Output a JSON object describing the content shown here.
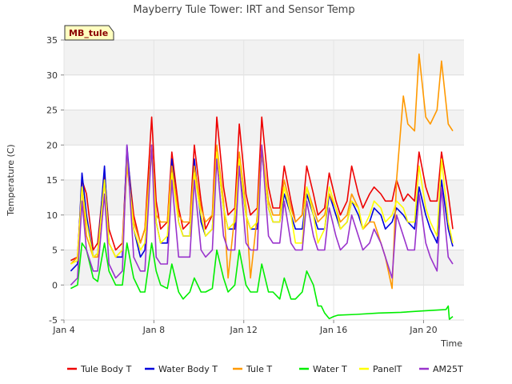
{
  "chart_data": {
    "type": "line",
    "title": "Mayberry Tule Tower: IRT and Sensor Temp",
    "xlabel": "Time",
    "ylabel": "Temperature (C)",
    "site_badge": "MB_tule",
    "xlim": [
      4,
      21.8
    ],
    "ylim": [
      -5,
      35
    ],
    "yticks": [
      -5,
      0,
      5,
      10,
      15,
      20,
      25,
      30,
      35
    ],
    "xticks": [
      {
        "value": 4,
        "label": "Jan 4"
      },
      {
        "value": 8,
        "label": "Jan 8"
      },
      {
        "value": 12,
        "label": "Jan 12"
      },
      {
        "value": 16,
        "label": "Jan 16"
      },
      {
        "value": 20,
        "label": "Jan 20"
      }
    ],
    "grid": true,
    "legend_position": "bottom",
    "series": [
      {
        "name": "Tule Body T",
        "color": "#ee0000",
        "x": [
          4.3,
          4.6,
          4.8,
          5.0,
          5.3,
          5.5,
          5.8,
          6.0,
          6.3,
          6.6,
          6.8,
          7.1,
          7.4,
          7.6,
          7.9,
          8.1,
          8.3,
          8.6,
          8.8,
          9.1,
          9.3,
          9.6,
          9.8,
          10.1,
          10.3,
          10.6,
          10.8,
          11.1,
          11.3,
          11.6,
          11.8,
          12.1,
          12.3,
          12.6,
          12.8,
          13.1,
          13.3,
          13.6,
          13.8,
          14.1,
          14.3,
          14.6,
          14.8,
          15.1,
          15.3,
          15.6,
          15.8,
          16.1,
          16.3,
          16.6,
          16.8,
          17.1,
          17.3,
          17.6,
          17.8,
          18.1,
          18.3,
          18.6,
          18.8,
          19.1,
          19.3,
          19.6,
          19.8,
          20.1,
          20.3,
          20.6,
          20.8,
          21.1,
          21.3
        ],
        "y": [
          3.5,
          4,
          15,
          13,
          5,
          6,
          16,
          8,
          5,
          6,
          19,
          10,
          6,
          8,
          24,
          12,
          8,
          9,
          19,
          11,
          8,
          9,
          20,
          12,
          8,
          10,
          24,
          14,
          10,
          11,
          23,
          13,
          10,
          11,
          24,
          14,
          11,
          11,
          17,
          12,
          9,
          10,
          17,
          13,
          10,
          11,
          16,
          12,
          10,
          12,
          17,
          13,
          11,
          13,
          14,
          13,
          12,
          12,
          15,
          12,
          13,
          12,
          19,
          14,
          12,
          12,
          19,
          13,
          8
        ]
      },
      {
        "name": "Water Body T",
        "color": "#0000dd",
        "x": [
          4.3,
          4.6,
          4.8,
          5.0,
          5.3,
          5.5,
          5.8,
          6.0,
          6.3,
          6.6,
          6.8,
          7.1,
          7.4,
          7.6,
          7.9,
          8.1,
          8.3,
          8.6,
          8.8,
          9.1,
          9.3,
          9.6,
          9.8,
          10.1,
          10.3,
          10.6,
          10.8,
          11.1,
          11.3,
          11.6,
          11.8,
          12.1,
          12.3,
          12.6,
          12.8,
          13.1,
          13.3,
          13.6,
          13.8,
          14.1,
          14.3,
          14.6,
          14.8,
          15.1,
          15.3,
          15.6,
          15.8,
          16.1,
          16.3,
          16.6,
          16.8,
          17.1,
          17.3,
          17.6,
          17.8,
          18.1,
          18.3,
          18.6,
          18.8,
          19.1,
          19.3,
          19.6,
          19.8,
          20.1,
          20.3,
          20.6,
          20.8,
          21.1,
          21.3
        ],
        "y": [
          2,
          3,
          16,
          10,
          4,
          4.5,
          17,
          6,
          4,
          4,
          20,
          8,
          4,
          5,
          20,
          9,
          6,
          6,
          18,
          9,
          7,
          7,
          18,
          9,
          7,
          8,
          19,
          11,
          8,
          8,
          17,
          10,
          8,
          8,
          19,
          11,
          9,
          9,
          13,
          10,
          8,
          8,
          13,
          10,
          8,
          8,
          13,
          10,
          8,
          9,
          12,
          10,
          8,
          9,
          11,
          10,
          8,
          9,
          11,
          10,
          9,
          8,
          14,
          10,
          8,
          6,
          15,
          8,
          5.5
        ]
      },
      {
        "name": "Tule T",
        "color": "#ff9900",
        "x": [
          4.3,
          4.6,
          4.8,
          5.0,
          5.3,
          5.5,
          5.8,
          6.0,
          6.3,
          6.6,
          6.8,
          7.1,
          7.4,
          7.6,
          7.9,
          8.1,
          8.3,
          8.6,
          8.8,
          9.1,
          9.3,
          9.6,
          9.8,
          10.1,
          10.3,
          10.6,
          10.8,
          11.1,
          11.3,
          11.6,
          11.8,
          12.1,
          12.3,
          12.6,
          12.8,
          13.1,
          13.3,
          13.6,
          13.8,
          14.1,
          14.3,
          14.6,
          14.8,
          15.1,
          15.3,
          15.6,
          15.8,
          16.1,
          16.3,
          16.6,
          16.8,
          17.1,
          17.3,
          17.6,
          17.8,
          18.1,
          18.3,
          18.6,
          18.8,
          19.1,
          19.3,
          19.6,
          19.8,
          20.1,
          20.3,
          20.6,
          20.8,
          21.1,
          21.3
        ],
        "y": [
          3,
          4,
          14,
          7,
          4,
          4,
          15,
          6,
          4,
          5,
          17,
          9,
          6,
          8,
          20,
          10,
          9,
          9,
          17,
          10,
          9,
          9,
          17,
          11,
          9,
          10,
          20,
          12,
          1,
          10,
          19,
          11,
          1,
          10,
          20,
          12,
          10,
          10,
          15,
          11,
          9,
          10,
          14,
          11,
          9,
          10,
          13,
          11,
          9,
          10,
          13,
          11,
          8,
          9,
          9,
          6,
          4,
          -0.5,
          15,
          27,
          23,
          22,
          33,
          24,
          23,
          25,
          32,
          23,
          22
        ]
      },
      {
        "name": "Water T",
        "color": "#00ee00",
        "x": [
          4.3,
          4.6,
          4.8,
          5.0,
          5.3,
          5.5,
          5.8,
          6.0,
          6.3,
          6.6,
          6.8,
          7.1,
          7.4,
          7.6,
          7.9,
          8.1,
          8.3,
          8.6,
          8.8,
          9.1,
          9.3,
          9.6,
          9.8,
          10.1,
          10.3,
          10.6,
          10.8,
          11.1,
          11.3,
          11.6,
          11.8,
          12.1,
          12.3,
          12.6,
          12.8,
          13.1,
          13.3,
          13.6,
          13.8,
          14.1,
          14.3,
          14.6,
          14.8,
          15.1,
          15.3,
          15.45,
          15.6,
          15.8,
          16.0,
          16.2,
          17.0,
          18.0,
          19.0,
          20.0,
          21.0,
          21.1,
          21.15,
          21.3
        ],
        "y": [
          -0.5,
          0,
          6,
          5,
          1,
          0.5,
          6,
          2,
          0,
          0,
          6,
          1,
          -1,
          -1,
          6,
          2,
          0,
          -0.5,
          3,
          -1,
          -2,
          -1,
          1,
          -1,
          -1,
          -0.5,
          5,
          1,
          -1,
          0,
          5,
          0,
          -1,
          -1,
          3,
          -1,
          -1,
          -2,
          1,
          -2,
          -2,
          -1,
          2,
          0,
          -3,
          -3,
          -4,
          -4.8,
          -4.5,
          -4.3,
          -4.2,
          -4.0,
          -3.9,
          -3.7,
          -3.5,
          -3.0,
          -4.9,
          -4.5
        ]
      },
      {
        "name": "PanelT",
        "color": "#ffff00",
        "x": [
          4.3,
          4.6,
          4.8,
          5.0,
          5.3,
          5.5,
          5.8,
          6.0,
          6.3,
          6.6,
          6.8,
          7.1,
          7.4,
          7.6,
          7.9,
          8.1,
          8.3,
          8.6,
          8.8,
          9.1,
          9.3,
          9.6,
          9.8,
          10.1,
          10.3,
          10.6,
          10.8,
          11.1,
          11.3,
          11.6,
          11.8,
          12.1,
          12.3,
          12.6,
          12.8,
          13.1,
          13.3,
          13.6,
          13.8,
          14.1,
          14.3,
          14.6,
          14.8,
          15.1,
          15.3,
          15.6,
          15.8,
          16.1,
          16.3,
          16.6,
          16.8,
          17.1,
          17.3,
          17.6,
          17.8,
          18.1,
          18.3,
          18.6,
          18.8,
          19.1,
          19.3,
          19.6,
          19.8,
          20.1,
          20.3,
          20.6,
          20.8,
          21.1,
          21.3
        ],
        "y": [
          3,
          3.5,
          14,
          9,
          4,
          4.5,
          15,
          6,
          4,
          5,
          18,
          8,
          5,
          6,
          19,
          9,
          6,
          7,
          16,
          9,
          7,
          7,
          16,
          10,
          7,
          8,
          19,
          11,
          8,
          9,
          18,
          10,
          8,
          9,
          19,
          11,
          9,
          9,
          14,
          10,
          6,
          6,
          14,
          10,
          6,
          8,
          14,
          11,
          8,
          9,
          12,
          11,
          8,
          10,
          12,
          11,
          9,
          10,
          12,
          11,
          9,
          9,
          17,
          11,
          9,
          7,
          18,
          9,
          6
        ]
      },
      {
        "name": "AM25T",
        "color": "#9933cc",
        "x": [
          4.3,
          4.6,
          4.8,
          5.0,
          5.3,
          5.5,
          5.8,
          6.0,
          6.3,
          6.6,
          6.8,
          7.1,
          7.4,
          7.6,
          7.9,
          8.1,
          8.3,
          8.6,
          8.8,
          9.1,
          9.3,
          9.6,
          9.8,
          10.1,
          10.3,
          10.6,
          10.8,
          11.1,
          11.3,
          11.6,
          11.8,
          12.1,
          12.3,
          12.6,
          12.8,
          13.1,
          13.3,
          13.6,
          13.8,
          14.1,
          14.3,
          14.6,
          14.8,
          15.1,
          15.3,
          15.6,
          15.8,
          16.1,
          16.3,
          16.6,
          16.8,
          17.1,
          17.3,
          17.6,
          17.8,
          18.1,
          18.3,
          18.6,
          18.8,
          19.1,
          19.3,
          19.6,
          19.8,
          20.1,
          20.3,
          20.6,
          20.8,
          21.1,
          21.3
        ],
        "y": [
          0,
          1,
          12,
          5,
          2,
          2,
          13,
          3,
          1,
          2,
          20,
          4,
          2,
          2,
          20,
          4,
          3,
          3,
          15,
          4,
          4,
          4,
          15,
          5,
          4,
          5,
          18,
          7,
          5,
          5,
          17,
          6,
          5,
          5,
          20,
          7,
          6,
          6,
          12,
          6,
          5,
          5,
          12,
          7,
          5,
          5,
          11,
          7,
          5,
          6,
          10,
          7,
          5,
          6,
          8,
          6,
          4,
          1,
          10,
          7,
          5,
          5,
          13,
          6,
          4,
          2,
          14,
          4,
          3
        ]
      }
    ]
  }
}
